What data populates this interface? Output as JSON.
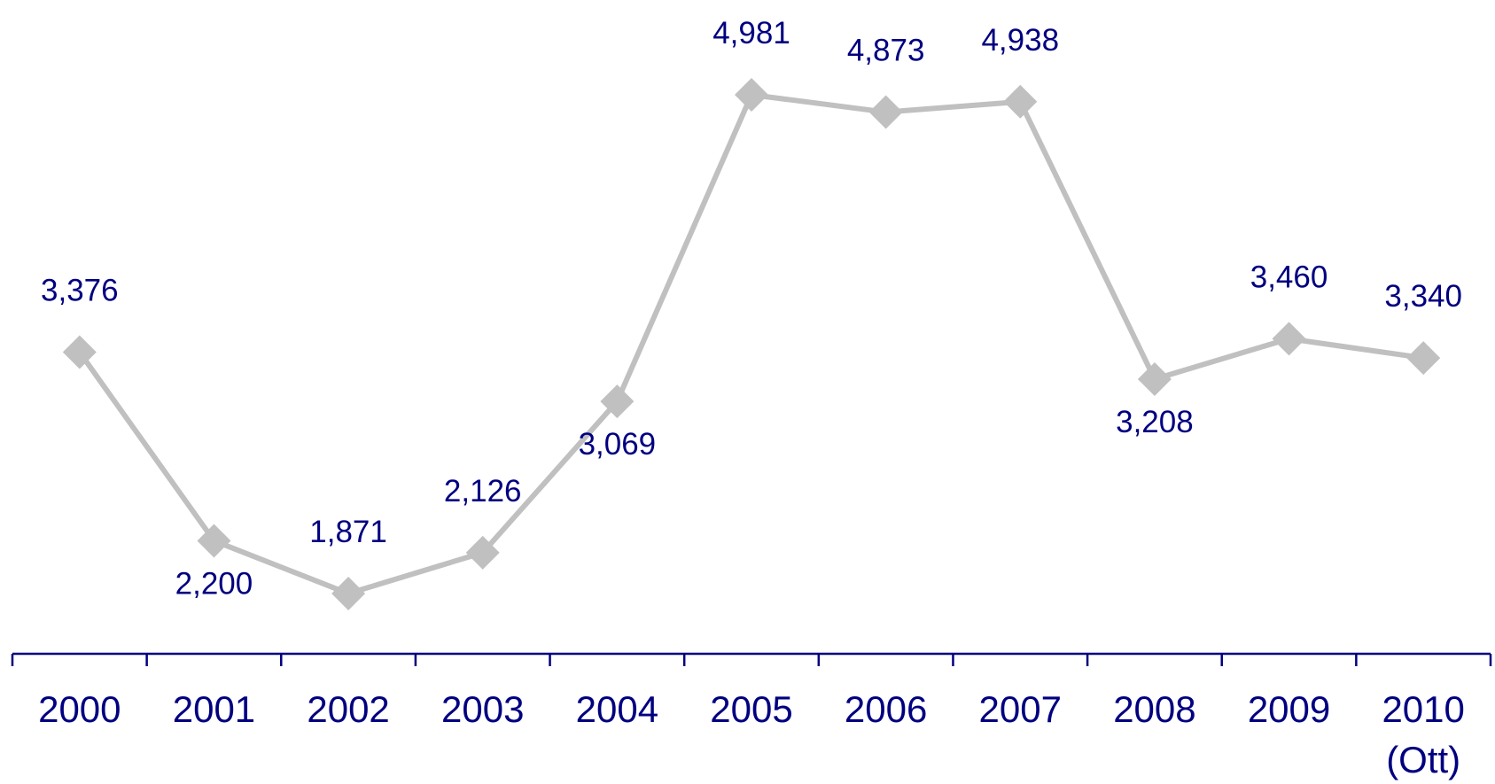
{
  "chart_data": {
    "type": "line",
    "categories": [
      [
        "2000"
      ],
      [
        "2001"
      ],
      [
        "2002"
      ],
      [
        "2003"
      ],
      [
        "2004"
      ],
      [
        "2005"
      ],
      [
        "2006"
      ],
      [
        "2007"
      ],
      [
        "2008"
      ],
      [
        "2009"
      ],
      [
        "2010",
        "(Ott)"
      ]
    ],
    "series": [
      {
        "values": [
          3376,
          2200,
          1871,
          2126,
          3069,
          4981,
          4873,
          4938,
          3208,
          3460,
          3340
        ],
        "labels": [
          "3,376",
          "2,200",
          "1,871",
          "2,126",
          "3,069",
          "4,981",
          "4,873",
          "4,938",
          "3,208",
          "3,460",
          "3,340"
        ],
        "label_position": [
          "above",
          "below",
          "above",
          "above",
          "below",
          "above",
          "above",
          "above",
          "below",
          "above",
          "above"
        ],
        "color": "#c0c0c0",
        "marker": "diamond"
      }
    ],
    "title": "",
    "xlabel": "",
    "ylabel": "",
    "ylim": [
      1000,
      5200
    ],
    "grid": false,
    "legend": "none",
    "axis_color": "#000080",
    "text_color": "#000080"
  }
}
